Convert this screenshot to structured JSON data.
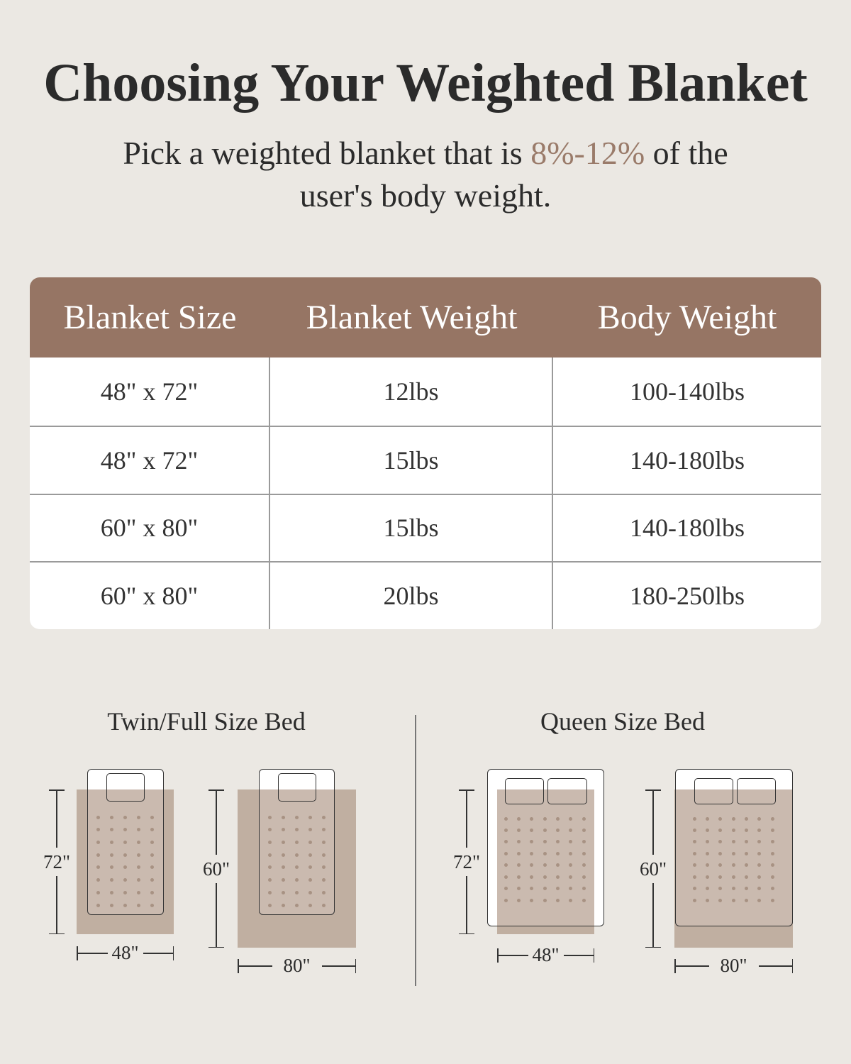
{
  "title": "Choosing Your Weighted Blanket",
  "subtitle": {
    "before": "Pick a weighted blanket that is ",
    "highlight": "8%-12%",
    "after": " of the",
    "line2": "user's body weight."
  },
  "colors": {
    "header": "#967564",
    "accent": "#9a7b6a",
    "blanket": "#c4b1a3",
    "background": "#ebe8e3"
  },
  "table": {
    "headers": [
      "Blanket Size",
      "Blanket Weight",
      "Body Weight"
    ],
    "rows": [
      [
        "48\" x 72\"",
        "12lbs",
        "100-140lbs"
      ],
      [
        "48\" x 72\"",
        "15lbs",
        "140-180lbs"
      ],
      [
        "60\" x 80\"",
        "15lbs",
        "140-180lbs"
      ],
      [
        "60\" x 80\"",
        "20lbs",
        "180-250lbs"
      ]
    ]
  },
  "beds": {
    "twin_title": "Twin/Full Size Bed",
    "queen_title": "Queen Size Bed",
    "diagrams": [
      {
        "height": "72\"",
        "width": "48\""
      },
      {
        "height": "60\"",
        "width": "80\""
      },
      {
        "height": "72\"",
        "width": "48\""
      },
      {
        "height": "60\"",
        "width": "80\""
      }
    ]
  }
}
